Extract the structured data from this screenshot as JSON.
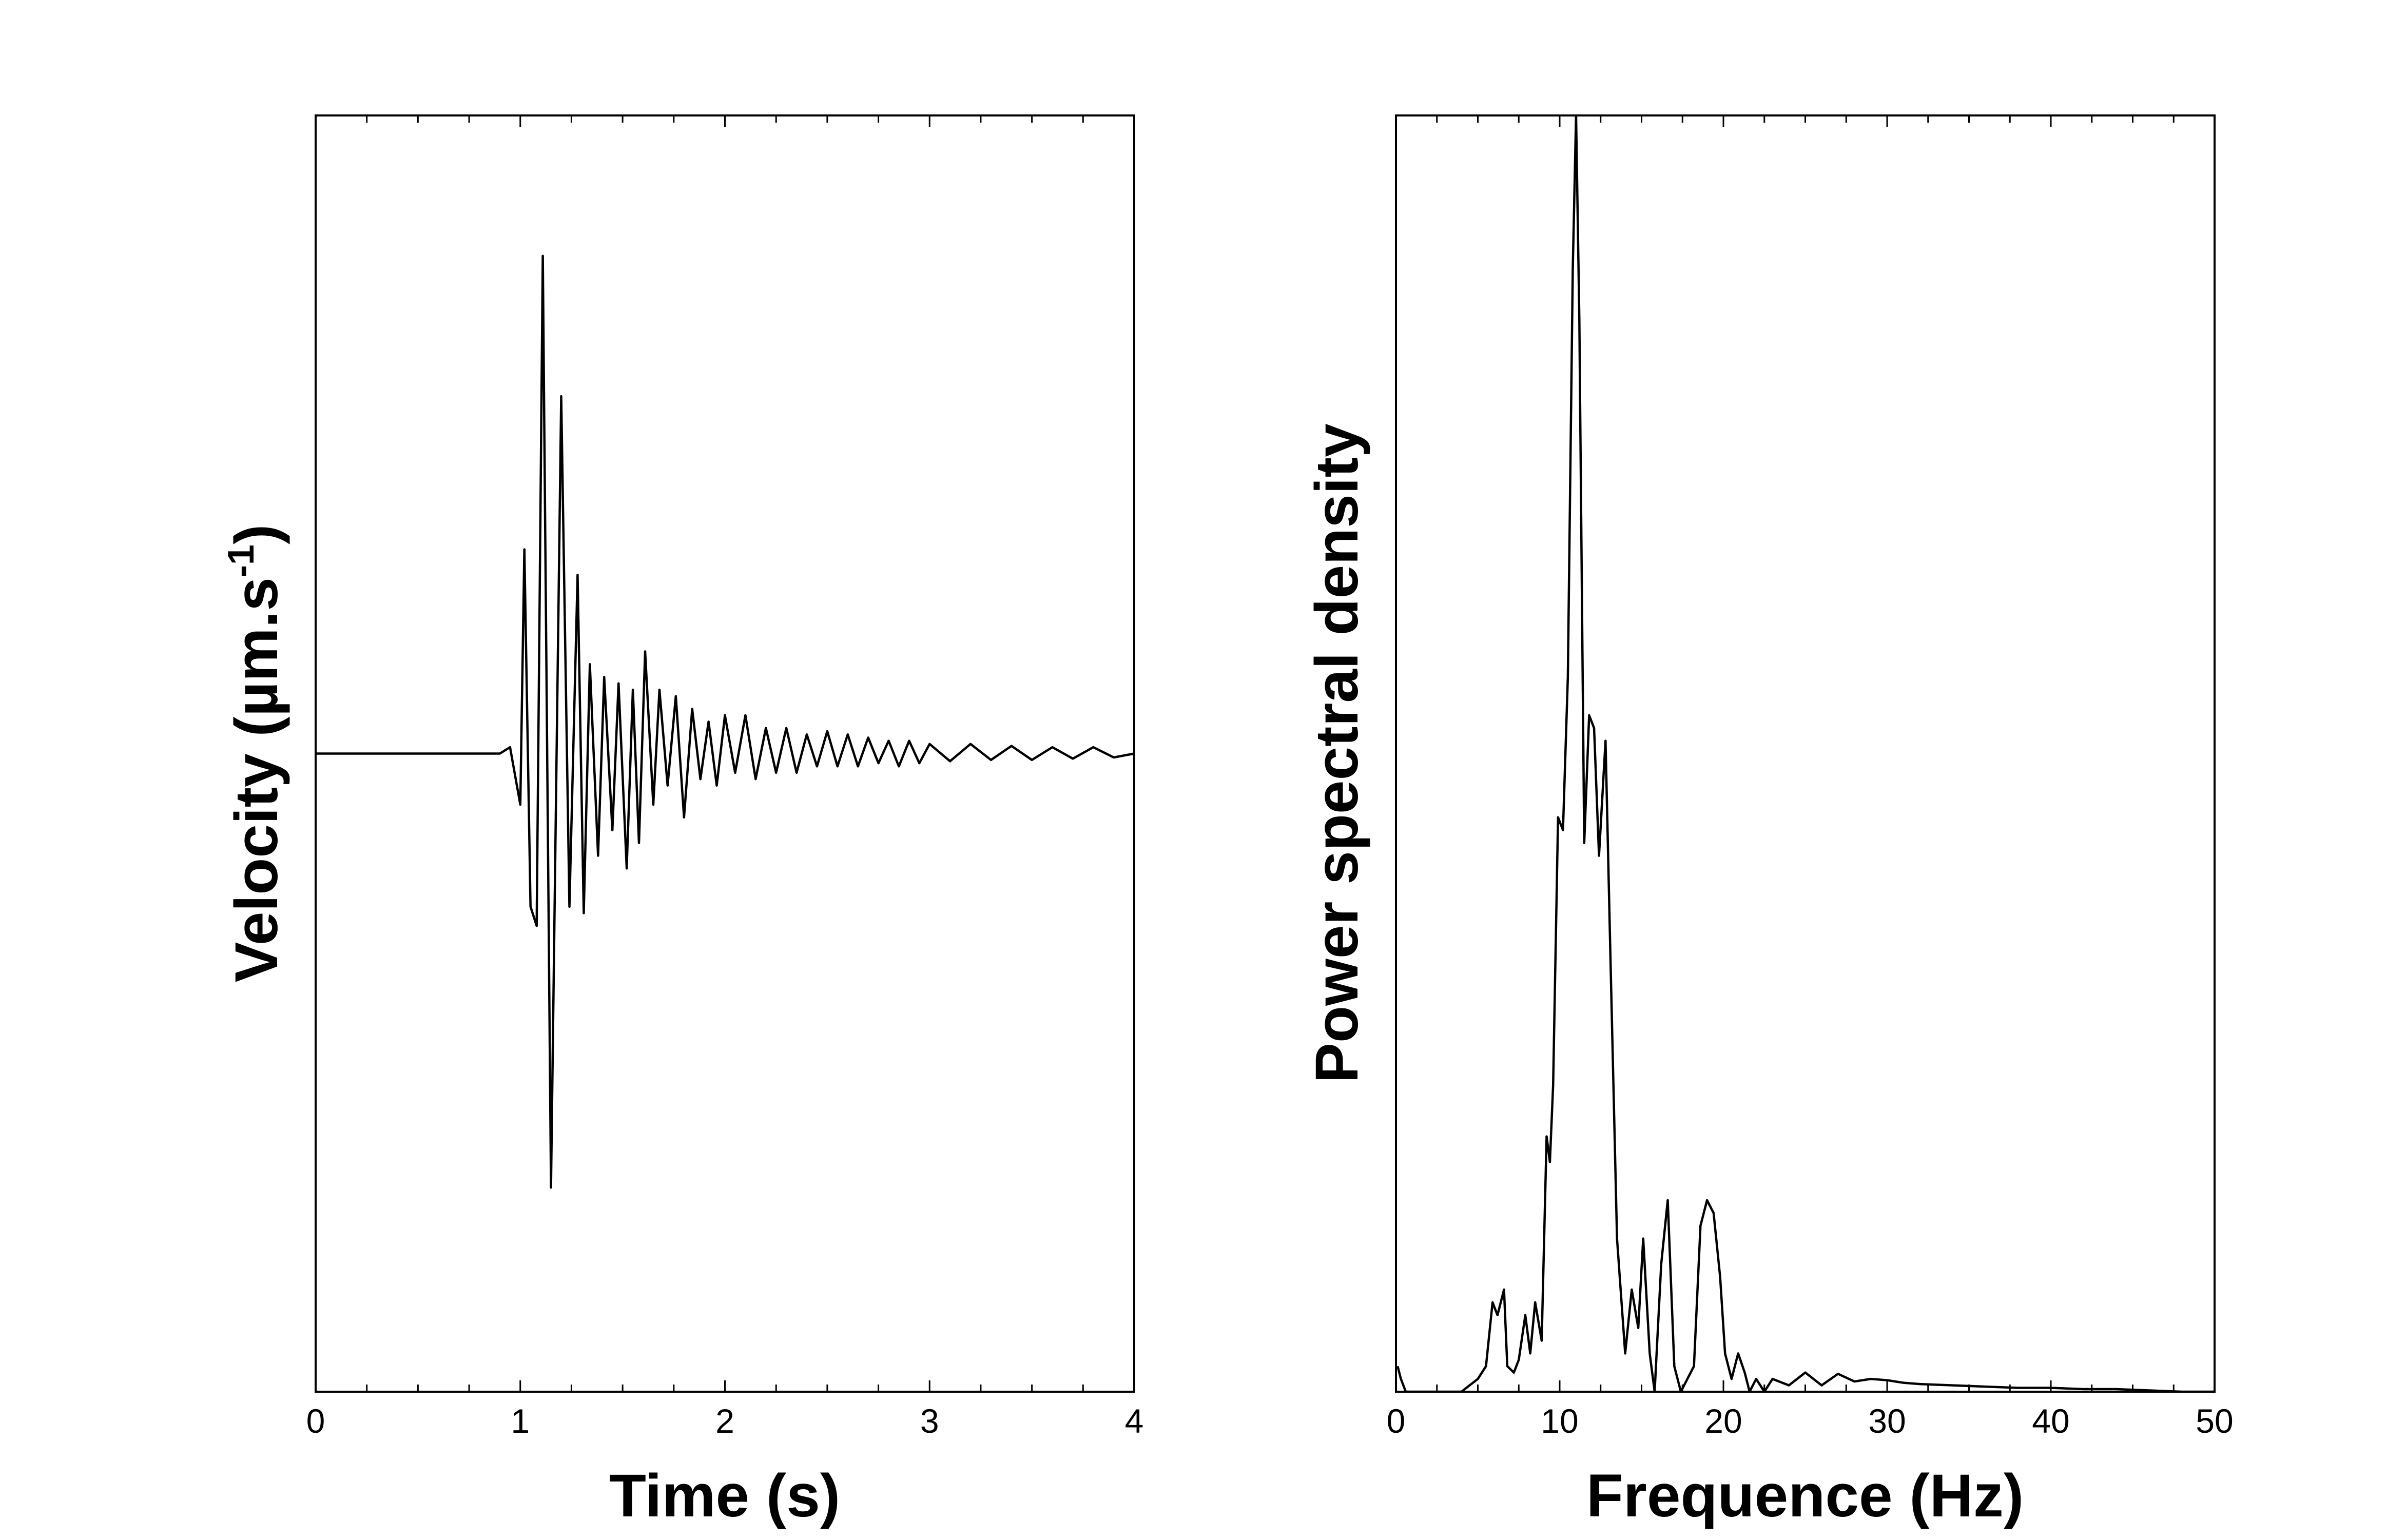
{
  "chart_data": [
    {
      "type": "line",
      "title": "",
      "xlabel": "Time (s)",
      "ylabel_main": "Velocity (µm.s",
      "ylabel_sup": "-1",
      "ylabel_close": ")",
      "xlim": [
        0,
        4
      ],
      "ylim": [
        -1,
        1
      ],
      "xticks": [
        0,
        1,
        2,
        3,
        4
      ],
      "xtick_labels": [
        "0",
        "1",
        "2",
        "3",
        "4"
      ],
      "yticks_labeled": false,
      "grid": false,
      "series": [
        {
          "x": [
            0,
            0.9,
            0.95,
            1.0,
            1.02,
            1.05,
            1.08,
            1.11,
            1.15,
            1.2,
            1.24,
            1.28,
            1.31,
            1.34,
            1.38,
            1.41,
            1.45,
            1.48,
            1.52,
            1.55,
            1.58,
            1.61,
            1.65,
            1.68,
            1.72,
            1.76,
            1.8,
            1.84,
            1.88,
            1.92,
            1.96,
            2.0,
            2.05,
            2.1,
            2.15,
            2.2,
            2.25,
            2.3,
            2.35,
            2.4,
            2.45,
            2.5,
            2.55,
            2.6,
            2.65,
            2.7,
            2.75,
            2.8,
            2.85,
            2.9,
            2.95,
            3.0,
            3.1,
            3.2,
            3.3,
            3.4,
            3.5,
            3.6,
            3.7,
            3.8,
            3.9,
            4.0
          ],
          "y": [
            0,
            0,
            0.01,
            -0.08,
            0.32,
            -0.24,
            -0.27,
            0.78,
            -0.68,
            0.56,
            -0.24,
            0.28,
            -0.25,
            0.14,
            -0.16,
            0.12,
            -0.12,
            0.11,
            -0.18,
            0.1,
            -0.14,
            0.16,
            -0.08,
            0.1,
            -0.05,
            0.09,
            -0.1,
            0.07,
            -0.04,
            0.05,
            -0.05,
            0.06,
            -0.03,
            0.06,
            -0.04,
            0.04,
            -0.03,
            0.04,
            -0.03,
            0.03,
            -0.02,
            0.035,
            -0.02,
            0.03,
            -0.02,
            0.025,
            -0.015,
            0.02,
            -0.02,
            0.02,
            -0.015,
            0.015,
            -0.012,
            0.015,
            -0.01,
            0.012,
            -0.01,
            0.01,
            -0.008,
            0.01,
            -0.006,
            0.0
          ]
        }
      ]
    },
    {
      "type": "line",
      "title": "",
      "xlabel": "Frequence (Hz)",
      "ylabel": "Power spectral density",
      "xlim": [
        0,
        50
      ],
      "ylim": [
        0,
        1
      ],
      "xticks": [
        0,
        10,
        20,
        30,
        40,
        50
      ],
      "xtick_labels": [
        "0",
        "10",
        "20",
        "30",
        "40",
        "50"
      ],
      "yticks_labeled": false,
      "grid": false,
      "series": [
        {
          "x": [
            0.1,
            0.3,
            0.6,
            1,
            2,
            3,
            4,
            5,
            5.5,
            5.9,
            6.2,
            6.6,
            6.8,
            7.2,
            7.5,
            7.9,
            8.2,
            8.5,
            8.9,
            9.2,
            9.4,
            9.6,
            9.9,
            10.2,
            10.5,
            10.8,
            11.0,
            11.2,
            11.5,
            11.8,
            12.1,
            12.4,
            12.8,
            13.1,
            13.5,
            14.0,
            14.4,
            14.8,
            15.1,
            15.5,
            15.8,
            16.2,
            16.6,
            17.0,
            17.4,
            17.8,
            18.2,
            18.6,
            19.0,
            19.4,
            19.8,
            20.1,
            20.5,
            20.9,
            21.3,
            21.6,
            22.0,
            22.5,
            23,
            24,
            25,
            26,
            27,
            28,
            29,
            30,
            31,
            32,
            34,
            36,
            38,
            40,
            42,
            44,
            46,
            48,
            50
          ],
          "y": [
            0.02,
            0.01,
            0.0,
            0.0,
            0.0,
            0.0,
            0.0,
            0.01,
            0.02,
            0.07,
            0.06,
            0.08,
            0.02,
            0.015,
            0.025,
            0.06,
            0.03,
            0.07,
            0.04,
            0.2,
            0.18,
            0.24,
            0.45,
            0.44,
            0.56,
            0.88,
            1.0,
            0.84,
            0.43,
            0.53,
            0.52,
            0.42,
            0.51,
            0.34,
            0.12,
            0.03,
            0.08,
            0.05,
            0.12,
            0.03,
            0.0,
            0.1,
            0.15,
            0.02,
            0.0,
            0.01,
            0.02,
            0.13,
            0.15,
            0.14,
            0.09,
            0.03,
            0.01,
            0.03,
            0.015,
            0.0,
            0.01,
            0.0,
            0.01,
            0.005,
            0.015,
            0.005,
            0.014,
            0.008,
            0.01,
            0.009,
            0.007,
            0.006,
            0.005,
            0.004,
            0.003,
            0.003,
            0.002,
            0.002,
            0.001,
            0.0,
            0.0
          ]
        }
      ]
    }
  ]
}
